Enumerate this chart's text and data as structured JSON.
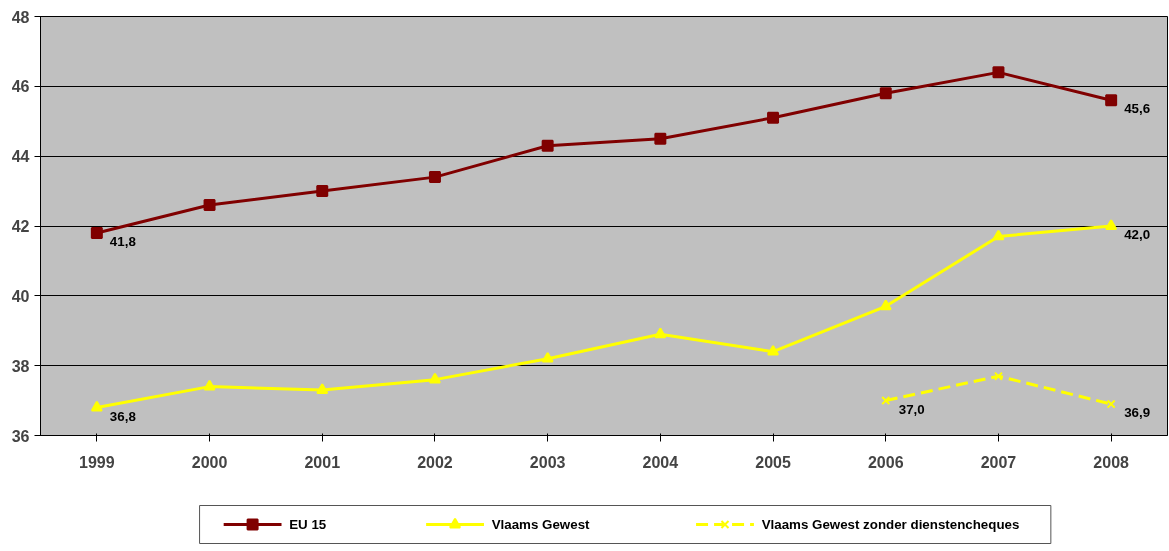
{
  "chart_data": {
    "type": "line",
    "categories": [
      "1999",
      "2000",
      "2001",
      "2002",
      "2003",
      "2004",
      "2005",
      "2006",
      "2007",
      "2008"
    ],
    "series": [
      {
        "name": "EU 15",
        "color": "#800000",
        "marker": "square",
        "line_style": "solid",
        "values": [
          41.8,
          42.6,
          43.0,
          43.4,
          44.3,
          44.5,
          45.1,
          45.8,
          46.4,
          45.6
        ],
        "value_labels": [
          "41,8",
          null,
          null,
          null,
          null,
          null,
          null,
          null,
          null,
          "45,6"
        ]
      },
      {
        "name": "Vlaams Gewest",
        "color": "#ffff00",
        "marker": "triangle",
        "line_style": "solid",
        "values": [
          36.8,
          37.4,
          37.3,
          37.6,
          38.2,
          38.9,
          38.4,
          39.7,
          41.7,
          42.0
        ],
        "value_labels": [
          "36,8",
          null,
          null,
          null,
          null,
          null,
          null,
          null,
          null,
          "42,0"
        ]
      },
      {
        "name": "Vlaams Gewest zonder dienstencheques",
        "color": "#ffff00",
        "marker": "cross",
        "line_style": "dashed",
        "values": [
          null,
          null,
          null,
          null,
          null,
          null,
          null,
          37.0,
          37.7,
          36.9
        ],
        "value_labels": [
          null,
          null,
          null,
          null,
          null,
          null,
          null,
          "37,0",
          null,
          "36,9"
        ]
      }
    ],
    "ylim": [
      36,
      48
    ],
    "yticks": [
      36,
      38,
      40,
      42,
      44,
      46,
      48
    ],
    "grid": "y",
    "legend": "bottom"
  }
}
